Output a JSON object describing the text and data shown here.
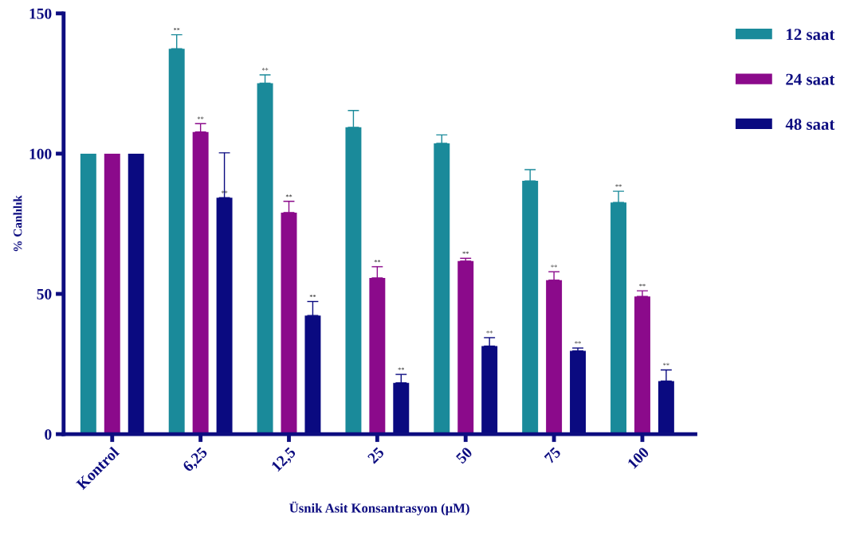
{
  "chart_data": {
    "type": "bar",
    "xlabel": "Üsnik Asit Konsantrasyon (µM)",
    "ylabel": "% Canlılık",
    "categories": [
      "Kontrol",
      "6,25",
      "12,5",
      "25",
      "50",
      "75",
      "100"
    ],
    "series": [
      {
        "name": "12 saat",
        "color": "#1a8a9a",
        "values": [
          100,
          137.4,
          125.1,
          109.4,
          103.7,
          90.3,
          82.6
        ],
        "errors": [
          null,
          5,
          3,
          6,
          3,
          4,
          4
        ],
        "value_labels": [
          null,
          "**",
          "**",
          null,
          null,
          null,
          "**"
        ]
      },
      {
        "name": "24 saat",
        "color": "#8b0a8b",
        "values": [
          100,
          107.7,
          79,
          55.7,
          61.7,
          54.9,
          49.1
        ],
        "errors": [
          null,
          3,
          4,
          4,
          1,
          3,
          2
        ],
        "value_labels": [
          null,
          "**",
          "**",
          "**",
          "**",
          "**",
          "**"
        ]
      },
      {
        "name": "48 saat",
        "color": "#0a0a80",
        "values": [
          100,
          84.3,
          42.3,
          18.3,
          31.4,
          29.7,
          18.9
        ],
        "errors": [
          null,
          16,
          5,
          3,
          3,
          1,
          4
        ],
        "value_labels": [
          null,
          "**",
          "**",
          "**",
          "**",
          "**",
          "**"
        ]
      }
    ],
    "ylim": [
      0,
      150
    ],
    "yticks": [
      0,
      50,
      100,
      150
    ],
    "grid": false,
    "legend": "top right"
  }
}
